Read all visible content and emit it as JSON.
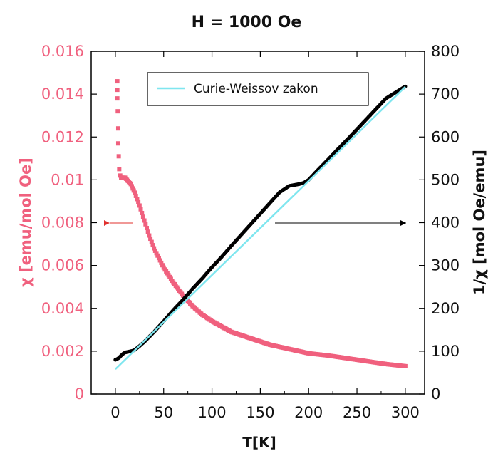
{
  "chart_data": {
    "type": "scatter",
    "title": "H = 1000 Oe",
    "xlabel": "T[K]",
    "ylabel_left": "χ [emu/mol Oe]",
    "ylabel_right": "1/χ [mol Oe/emu]",
    "xlim": [
      -25,
      320
    ],
    "ylim_left": [
      0,
      0.016
    ],
    "ylim_right": [
      0,
      800
    ],
    "x_ticks": [
      "0",
      "50",
      "100",
      "150",
      "200",
      "250",
      "300"
    ],
    "y_ticks_left": [
      "0",
      "0.002",
      "0.004",
      "0.006",
      "0.008",
      "0.01",
      "0.012",
      "0.014",
      "0.016"
    ],
    "y_ticks_right": [
      "0",
      "100",
      "200",
      "300",
      "400",
      "500",
      "600",
      "700",
      "800"
    ],
    "legend": {
      "position": "top-center",
      "entries": [
        "Curie-Weissov zakon"
      ]
    },
    "colors": {
      "chi": "#f0607e",
      "inverse_chi": "#000000",
      "fit": "#7fe6ef",
      "left_arrow": "#e0302e",
      "right_arrow": "#000000"
    },
    "series": [
      {
        "axis": "left",
        "x": [
          2,
          2,
          2,
          2.5,
          3,
          3,
          3.5,
          4,
          5,
          6,
          8,
          10,
          12,
          14,
          16,
          18,
          20,
          25,
          30,
          35,
          40,
          50,
          60,
          70,
          80,
          90,
          100,
          120,
          140,
          160,
          180,
          200,
          220,
          250,
          280,
          300
        ],
        "y": [
          0.0146,
          0.0142,
          0.0138,
          0.0132,
          0.0124,
          0.0117,
          0.0111,
          0.0105,
          0.0102,
          0.0101,
          0.0101,
          0.0101,
          0.01,
          0.0099,
          0.0098,
          0.0096,
          0.0094,
          0.0088,
          0.0081,
          0.0074,
          0.0068,
          0.0059,
          0.0052,
          0.0046,
          0.0041,
          0.0037,
          0.0034,
          0.0029,
          0.0026,
          0.0023,
          0.0021,
          0.0019,
          0.0018,
          0.0016,
          0.0014,
          0.0013
        ]
      },
      {
        "axis": "right",
        "x": [
          0,
          2,
          4,
          6,
          8,
          10,
          12,
          14,
          16,
          18,
          20,
          25,
          30,
          40,
          50,
          60,
          70,
          80,
          90,
          100,
          110,
          120,
          130,
          140,
          150,
          160,
          170,
          180,
          190,
          195,
          200,
          210,
          220,
          230,
          240,
          250,
          260,
          270,
          280,
          290,
          300
        ],
        "y": [
          80,
          82,
          85,
          90,
          94,
          97,
          98,
          99,
          100,
          101,
          103,
          112,
          122,
          145,
          170,
          196,
          220,
          246,
          270,
          296,
          320,
          346,
          371,
          396,
          421,
          446,
          471,
          486,
          490,
          493,
          500,
          524,
          547,
          571,
          594,
          618,
          642,
          666,
          690,
          704,
          718
        ]
      },
      {
        "name": "Curie-Weissov zakon",
        "axis": "right",
        "type": "line",
        "x": [
          0,
          300
        ],
        "y": [
          58,
          717
        ]
      }
    ]
  }
}
